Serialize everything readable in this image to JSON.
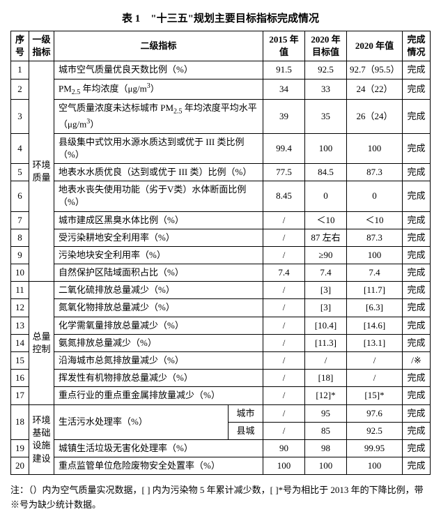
{
  "title": "表 1　\"十三五\"规划主要目标指标完成情况",
  "headers": {
    "seq": "序号",
    "l1": "一级指标",
    "l2": "二级指标",
    "v2015": "2015 年值",
    "v2020t": "2020 年目标值",
    "v2020": "2020 年值",
    "status": "完成情况"
  },
  "groups": {
    "g1": "环境质量",
    "g2": "总量控制",
    "g3": "环境基础设施建设"
  },
  "rows": {
    "r1": {
      "seq": "1",
      "l2": "城市空气质量优良天数比例（%）",
      "v2015": "91.5",
      "v2020t": "92.5",
      "v2020": "92.7（95.5）",
      "status": "完成"
    },
    "r2": {
      "seq": "2",
      "l2": "PM₂.₅ 年均浓度（μg/m³）",
      "v2015": "34",
      "v2020t": "33",
      "v2020": "24（22）",
      "status": "完成"
    },
    "r3": {
      "seq": "3",
      "l2": "空气质量浓度未达标城市 PM₂.₅ 年均浓度平均水平（μg/m³）",
      "v2015": "39",
      "v2020t": "35",
      "v2020": "26（24）",
      "status": "完成"
    },
    "r4": {
      "seq": "4",
      "l2": "县级集中式饮用水源水质达到或优于 III 类比例（%）",
      "v2015": "99.4",
      "v2020t": "100",
      "v2020": "100",
      "status": "完成"
    },
    "r5": {
      "seq": "5",
      "l2": "地表水水质优良（达到或优于 III 类）比例（%）",
      "v2015": "77.5",
      "v2020t": "84.5",
      "v2020": "87.3",
      "status": "完成"
    },
    "r6": {
      "seq": "6",
      "l2": "地表水丧失使用功能（劣于V类）水体断面比例（%）",
      "v2015": "8.45",
      "v2020t": "0",
      "v2020": "0",
      "status": "完成"
    },
    "r7": {
      "seq": "7",
      "l2": "城市建成区黑臭水体比例（%）",
      "v2015": "/",
      "v2020t": "＜10",
      "v2020": "＜10",
      "status": "完成"
    },
    "r8": {
      "seq": "8",
      "l2": "受污染耕地安全利用率（%）",
      "v2015": "/",
      "v2020t": "87 左右",
      "v2020": "87.3",
      "status": "完成"
    },
    "r9": {
      "seq": "9",
      "l2": "污染地块安全利用率（%）",
      "v2015": "/",
      "v2020t": "≥90",
      "v2020": "100",
      "status": "完成"
    },
    "r10": {
      "seq": "10",
      "l2": "自然保护区陆域面积占比（%）",
      "v2015": "7.4",
      "v2020t": "7.4",
      "v2020": "7.4",
      "status": "完成"
    },
    "r11": {
      "seq": "11",
      "l2": "二氧化硫排放总量减少（%）",
      "v2015": "/",
      "v2020t": "[3]",
      "v2020": "[11.7]",
      "status": "完成"
    },
    "r12": {
      "seq": "12",
      "l2": "氮氧化物排放总量减少（%）",
      "v2015": "/",
      "v2020t": "[3]",
      "v2020": "[6.3]",
      "status": "完成"
    },
    "r13": {
      "seq": "13",
      "l2": "化学需氧量排放总量减少（%）",
      "v2015": "/",
      "v2020t": "[10.4]",
      "v2020": "[14.6]",
      "status": "完成"
    },
    "r14": {
      "seq": "14",
      "l2": "氨氮排放总量减少（%）",
      "v2015": "/",
      "v2020t": "[11.3]",
      "v2020": "[13.1]",
      "status": "完成"
    },
    "r15": {
      "seq": "15",
      "l2": "沿海城市总氮排放量减少（%）",
      "v2015": "/",
      "v2020t": "/",
      "v2020": "/",
      "status": "/※"
    },
    "r16": {
      "seq": "16",
      "l2": "挥发性有机物排放总量减少（%）",
      "v2015": "/",
      "v2020t": "[18]",
      "v2020": "/",
      "status": "完成"
    },
    "r17": {
      "seq": "17",
      "l2": "重点行业的重点重金属排放量减少（%）",
      "v2015": "/",
      "v2020t": "[12]*",
      "v2020": "[15]*",
      "status": "完成"
    },
    "r18a": {
      "seq": "18",
      "l2": "生活污水处理率（%）",
      "sub": "城市",
      "v2015": "/",
      "v2020t": "95",
      "v2020": "97.6",
      "status": "完成"
    },
    "r18b": {
      "sub": "县城",
      "v2015": "/",
      "v2020t": "85",
      "v2020": "92.5",
      "status": "完成"
    },
    "r19": {
      "seq": "19",
      "l2": "城镇生活垃圾无害化处理率（%）",
      "v2015": "90",
      "v2020t": "98",
      "v2020": "99.95",
      "status": "完成"
    },
    "r20": {
      "seq": "20",
      "l2": "重点监管单位危险废物安全处置率（%）",
      "v2015": "100",
      "v2020t": "100",
      "v2020": "100",
      "status": "完成"
    }
  },
  "footnote": "注：（）内为空气质量实况数据，[ ] 内为污染物 5 年累计减少数，[ ]*号为相比于 2013 年的下降比例，带※号为缺少统计数据。"
}
